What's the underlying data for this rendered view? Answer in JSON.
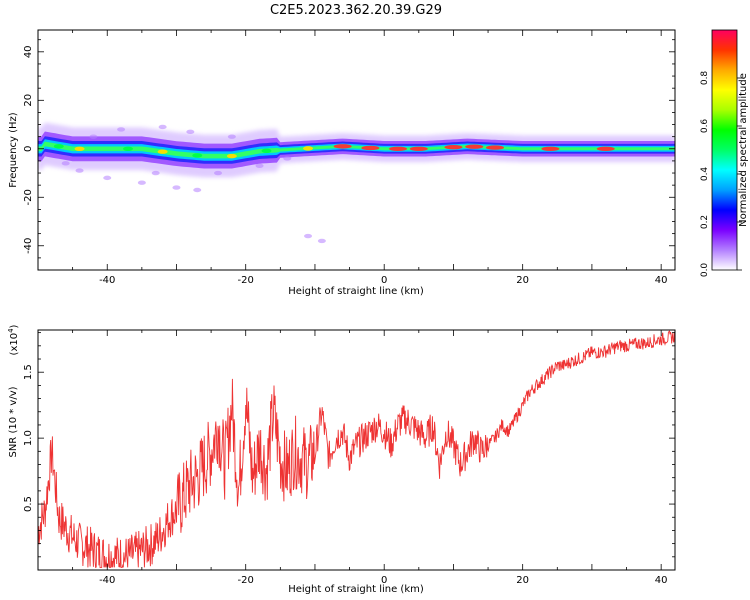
{
  "title": "C2E5.2023.362.20.39.G29",
  "chart_data": [
    {
      "type": "heatmap",
      "xlabel": "Height of straight line (km)",
      "ylabel": "Frequency (Hz)",
      "xlim": [
        -50,
        42
      ],
      "ylim": [
        -50,
        49
      ],
      "xticks": [
        -40,
        -20,
        0,
        20,
        40
      ],
      "yticks": [
        -40,
        -20,
        0,
        20,
        40
      ],
      "colorbar": {
        "label": "Normalized spectral amplitude",
        "range": [
          0.0,
          1.0
        ],
        "ticks": [
          0.0,
          0.2,
          0.4,
          0.6,
          0.8
        ],
        "colors": [
          "#ffffff",
          "#b380ff",
          "#7a00ff",
          "#0000ff",
          "#00a0ff",
          "#00ffff",
          "#00ff66",
          "#00ff00",
          "#aaff00",
          "#ffff00",
          "#ffaa00",
          "#ff3300",
          "#ff0060"
        ]
      },
      "ridge_center_hz": [
        {
          "x": -49,
          "y": 2
        },
        {
          "x": -45,
          "y": 0
        },
        {
          "x": -40,
          "y": 0
        },
        {
          "x": -35,
          "y": 0
        },
        {
          "x": -30,
          "y": -2
        },
        {
          "x": -26,
          "y": -3
        },
        {
          "x": -22,
          "y": -3
        },
        {
          "x": -18,
          "y": -1
        },
        {
          "x": -12,
          "y": 0
        },
        {
          "x": -6,
          "y": 1
        },
        {
          "x": 0,
          "y": 0
        },
        {
          "x": 6,
          "y": 0
        },
        {
          "x": 12,
          "y": 1
        },
        {
          "x": 20,
          "y": 0
        },
        {
          "x": 30,
          "y": 0
        },
        {
          "x": 42,
          "y": 0
        }
      ],
      "grid": false
    },
    {
      "type": "line",
      "xlabel": "Height of straight line (km)",
      "ylabel": "SNR (10 * v/v)",
      "y_multiplier": "(x10",
      "y_multiplier_exp": "4",
      "y_multiplier_close": ")",
      "xlim": [
        -50,
        42
      ],
      "ylim": [
        0.0,
        1.82
      ],
      "xticks": [
        -40,
        -20,
        0,
        20,
        40
      ],
      "yticks": [
        0.5,
        1.0,
        1.5
      ],
      "color": "#ee3333",
      "series": [
        {
          "x": [
            -50,
            -49,
            -48,
            -47,
            -46,
            -45,
            -44,
            -43,
            -42,
            -41,
            -40,
            -39,
            -38,
            -37,
            -36,
            -35,
            -34,
            -33,
            -32,
            -31,
            -30,
            -29,
            -28,
            -27,
            -26,
            -25,
            -24,
            -23,
            -22,
            -21,
            -20,
            -19,
            -18,
            -17,
            -16,
            -15,
            -14,
            -13,
            -12,
            -11,
            -10,
            -9,
            -8,
            -7,
            -6,
            -5,
            -4,
            -3,
            -2,
            -1,
            0,
            1,
            2,
            3,
            4,
            5,
            6,
            7,
            8,
            9,
            10,
            11,
            12,
            13,
            14,
            15,
            16,
            17,
            18,
            19,
            20,
            21,
            22,
            23,
            24,
            25,
            26,
            27,
            28,
            29,
            30,
            31,
            32,
            33,
            34,
            35,
            36,
            37,
            38,
            39,
            40,
            41,
            42
          ],
          "y": [
            0.3,
            0.45,
            0.9,
            0.4,
            0.32,
            0.25,
            0.2,
            0.18,
            0.15,
            0.12,
            0.1,
            0.1,
            0.1,
            0.1,
            0.12,
            0.15,
            0.18,
            0.22,
            0.3,
            0.4,
            0.45,
            0.55,
            0.65,
            0.7,
            0.8,
            0.9,
            1.1,
            0.8,
            1.25,
            0.6,
            1.3,
            0.7,
            0.95,
            0.75,
            1.2,
            0.85,
            0.75,
            0.9,
            0.85,
            0.8,
            0.9,
            1.2,
            0.85,
            1.0,
            1.05,
            0.85,
            0.95,
            1.0,
            1.05,
            1.1,
            1.05,
            0.95,
            1.1,
            1.15,
            1.1,
            1.05,
            1.0,
            1.1,
            0.8,
            1.05,
            0.95,
            0.8,
            0.9,
            1.0,
            0.9,
            0.95,
            1.0,
            1.1,
            1.05,
            1.15,
            1.25,
            1.35,
            1.4,
            1.45,
            1.5,
            1.55,
            1.55,
            1.58,
            1.6,
            1.62,
            1.65,
            1.65,
            1.66,
            1.68,
            1.7,
            1.7,
            1.71,
            1.72,
            1.72,
            1.74,
            1.75,
            1.76,
            1.77
          ]
        }
      ]
    }
  ]
}
